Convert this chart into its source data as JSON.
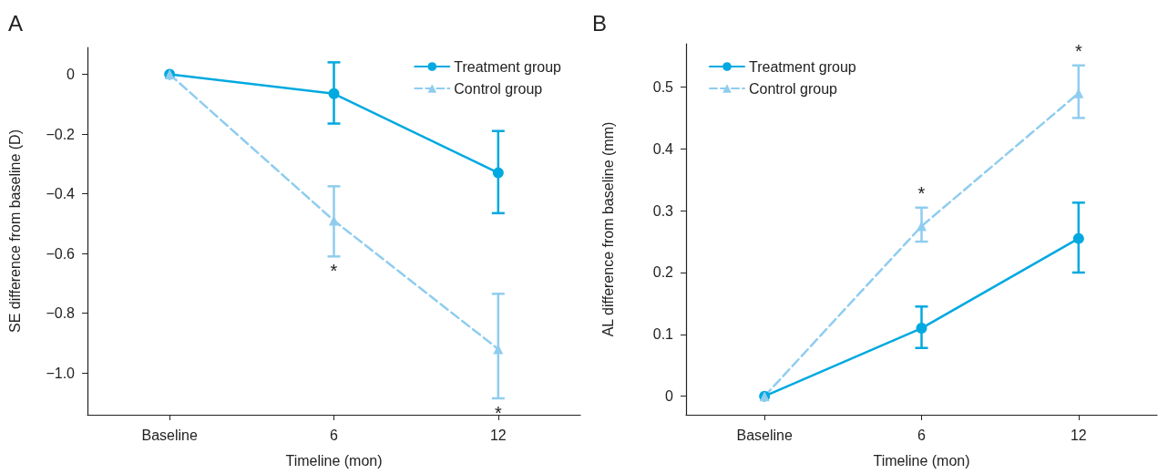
{
  "chart_data": [
    {
      "type": "line",
      "title": "A",
      "xlabel": "Timeline (mon)",
      "ylabel": "SE difference from baseline (D)",
      "categories": [
        "Baseline",
        "6",
        "12"
      ],
      "ylim": [
        -1.14,
        0.09
      ],
      "yticks": [
        0,
        {
          "value": -0.2,
          "label": "−0.2"
        },
        {
          "value": -0.4,
          "label": "−0.4"
        },
        {
          "value": -0.6,
          "label": "−0.6"
        },
        {
          "value": -0.8,
          "label": "−0.8"
        },
        {
          "value": -1.0,
          "label": "−1.0"
        }
      ],
      "grid": false,
      "legend": "top right",
      "series": [
        {
          "name": "Treatment group",
          "color": "#00a9e0",
          "marker": "circle",
          "line_style": "solid",
          "values": [
            0,
            -0.065,
            -0.33
          ],
          "errors": [
            null,
            [
              -0.165,
              0.04
            ],
            [
              -0.465,
              -0.19
            ]
          ]
        },
        {
          "name": "Control group",
          "color": "#8fcdef",
          "marker": "triangle",
          "line_style": "dashed",
          "values": [
            0,
            -0.49,
            -0.92
          ],
          "errors": [
            null,
            [
              -0.61,
              -0.375
            ],
            [
              -1.085,
              -0.735
            ]
          ]
        }
      ],
      "annotations": [
        "*",
        "*"
      ]
    },
    {
      "type": "line",
      "title": "B",
      "xlabel": "Timeline (mon)",
      "ylabel": "AL difference from baseline (mm)",
      "categories": [
        "Baseline",
        "6",
        "12"
      ],
      "ylim": [
        -0.03,
        0.57
      ],
      "yticks": [
        0,
        0.1,
        0.2,
        0.3,
        0.4,
        0.5
      ],
      "grid": false,
      "legend": "top left",
      "series": [
        {
          "name": "Treatment group",
          "color": "#00a9e0",
          "marker": "circle",
          "line_style": "solid",
          "values": [
            0,
            0.11,
            0.255
          ],
          "errors": [
            null,
            [
              0.078,
              0.145
            ],
            [
              0.2,
              0.313
            ]
          ]
        },
        {
          "name": "Control group",
          "color": "#8fcdef",
          "marker": "triangle",
          "line_style": "dashed",
          "values": [
            0,
            0.275,
            0.49
          ],
          "errors": [
            null,
            [
              0.25,
              0.305
            ],
            [
              0.45,
              0.535
            ]
          ]
        }
      ],
      "annotations": [
        "*",
        "*"
      ]
    }
  ]
}
